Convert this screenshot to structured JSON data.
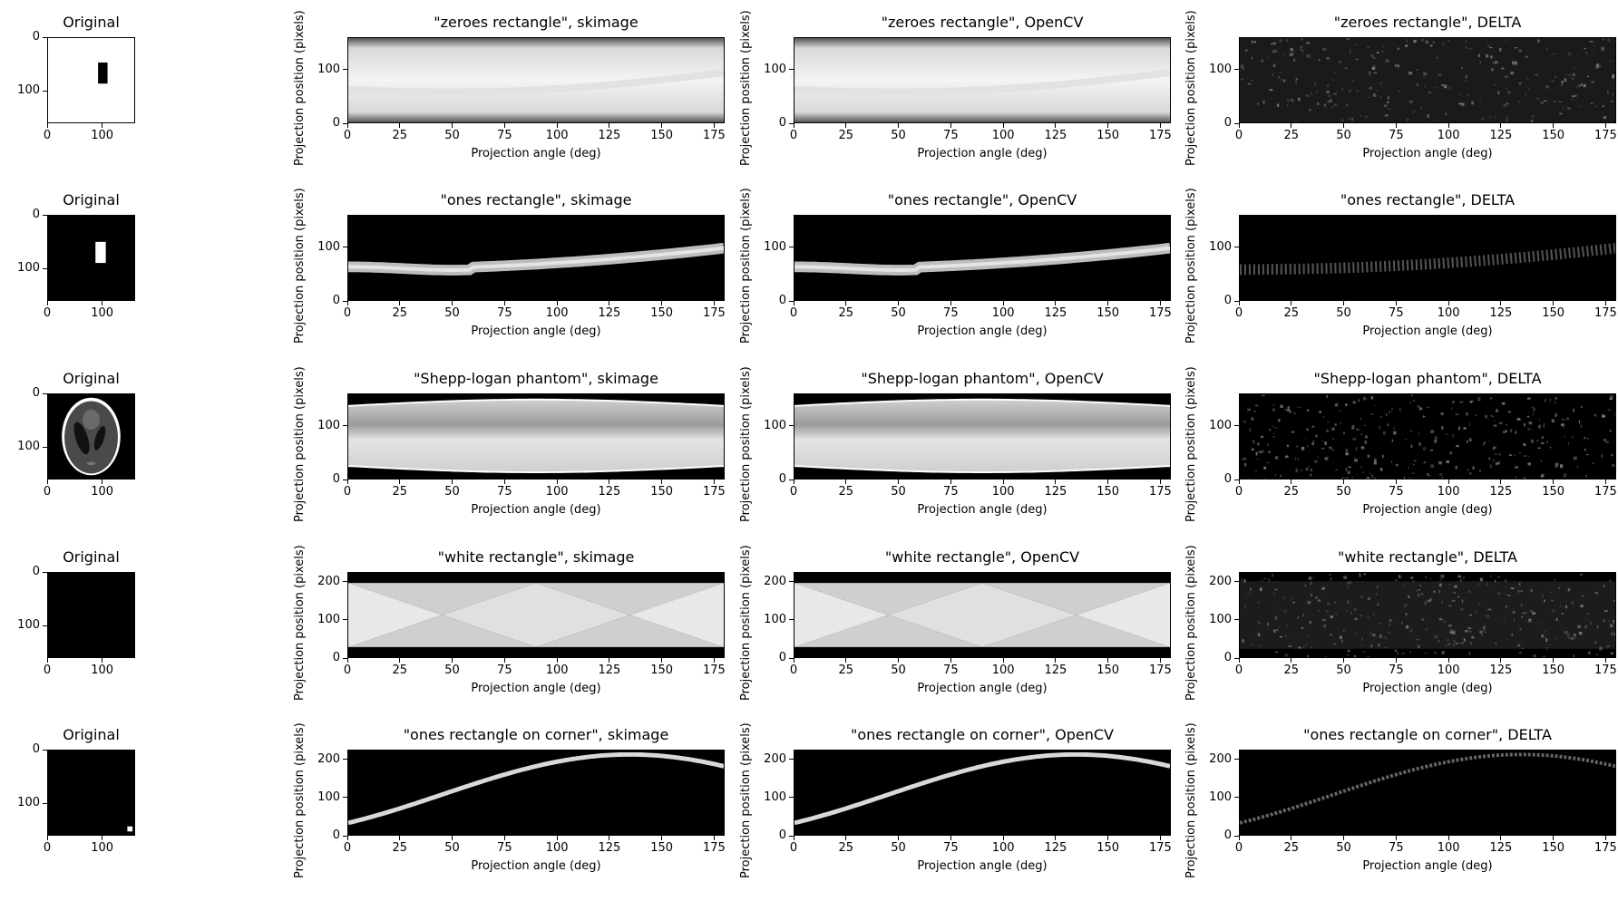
{
  "chart_data": {
    "type": "heatmap",
    "description": "Grid of sinogram comparisons: original image, skimage radon, OpenCV radon, and their delta",
    "x_label": "Projection angle (deg)",
    "y_label": "Projection position (pixels)",
    "x_ticks": [
      0,
      25,
      50,
      75,
      100,
      125,
      150,
      175
    ],
    "rows": [
      {
        "name": "zeroes rectangle",
        "original_title": "Original",
        "original": {
          "type": "image",
          "xlim": [
            0,
            160
          ],
          "ylim": [
            160,
            0
          ],
          "x_ticks": [
            0,
            100
          ],
          "y_ticks": [
            0,
            100
          ],
          "content": "white field with black rectangle"
        },
        "titles": [
          "\"zeroes rectangle\", skimage",
          "\"zeroes rectangle\", OpenCV",
          "\"zeroes rectangle\", DELTA"
        ],
        "y_ticks": [
          0,
          100
        ],
        "ylim": [
          0,
          160
        ],
        "xlim": [
          0,
          180
        ],
        "sinogram": "bright background with dark band"
      },
      {
        "name": "ones rectangle",
        "original_title": "Original",
        "original": {
          "type": "image",
          "xlim": [
            0,
            160
          ],
          "ylim": [
            160,
            0
          ],
          "x_ticks": [
            0,
            100
          ],
          "y_ticks": [
            0,
            100
          ],
          "content": "black field with white rectangle"
        },
        "titles": [
          "\"ones rectangle\", skimage",
          "\"ones rectangle\", OpenCV",
          "\"ones rectangle\", DELTA"
        ],
        "y_ticks": [
          0,
          100
        ],
        "ylim": [
          0,
          160
        ],
        "xlim": [
          0,
          180
        ],
        "sinogram": "single sinusoidal band"
      },
      {
        "name": "Shepp-logan phantom",
        "original_title": "Original",
        "original": {
          "type": "image",
          "xlim": [
            0,
            160
          ],
          "ylim": [
            160,
            0
          ],
          "x_ticks": [
            0,
            100
          ],
          "y_ticks": [
            0,
            100
          ],
          "content": "Shepp-Logan phantom"
        },
        "titles": [
          "\"Shepp-logan phantom\", skimage",
          "\"Shepp-logan phantom\", OpenCV",
          "\"Shepp-logan phantom\", DELTA"
        ],
        "y_ticks": [
          0,
          100
        ],
        "ylim": [
          0,
          160
        ],
        "xlim": [
          0,
          180
        ],
        "sinogram": "wide bright band"
      },
      {
        "name": "white rectangle",
        "original_title": "Original",
        "original": {
          "type": "image",
          "xlim": [
            0,
            160
          ],
          "ylim": [
            160,
            0
          ],
          "x_ticks": [
            0,
            100
          ],
          "y_ticks": [
            0,
            100
          ],
          "content": "uniform black"
        },
        "titles": [
          "\"white rectangle\", skimage",
          "\"white rectangle\", OpenCV",
          "\"white rectangle\", DELTA"
        ],
        "y_ticks": [
          0,
          100,
          200
        ],
        "ylim": [
          0,
          226
        ],
        "xlim": [
          0,
          180
        ],
        "sinogram": "diamond crossing pattern"
      },
      {
        "name": "ones rectangle on corner",
        "original_title": "Original",
        "original": {
          "type": "image",
          "xlim": [
            0,
            160
          ],
          "ylim": [
            160,
            0
          ],
          "x_ticks": [
            0,
            100
          ],
          "y_ticks": [
            0,
            100
          ],
          "content": "black with small white square in bottom-right corner"
        },
        "titles": [
          "\"ones rectangle on corner\", skimage",
          "\"ones rectangle on corner\", OpenCV",
          "\"ones rectangle on corner\", DELTA"
        ],
        "y_ticks": [
          0,
          100,
          200
        ],
        "ylim": [
          0,
          226
        ],
        "xlim": [
          0,
          180
        ],
        "sinogram": "thin sinusoidal curve"
      }
    ]
  },
  "colors": {
    "dark": "#000000",
    "light": "#ffffff",
    "grey": "#bfbfbf"
  }
}
